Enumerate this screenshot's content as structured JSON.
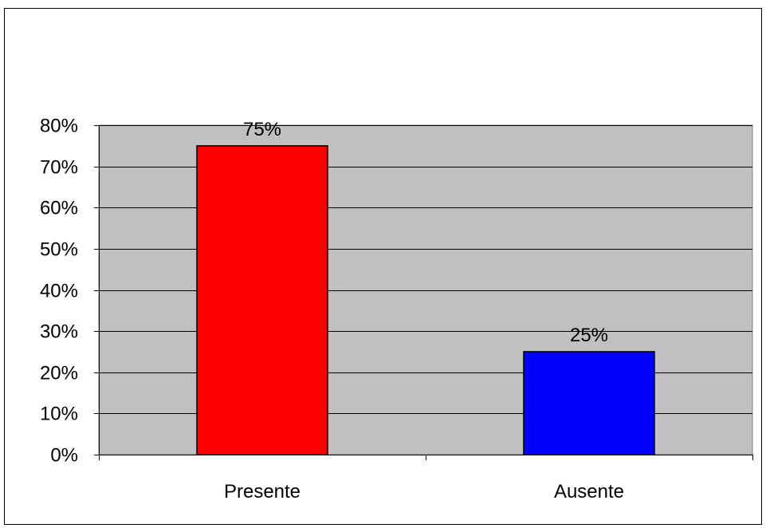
{
  "chart_data": {
    "type": "bar",
    "categories": [
      "Presente",
      "Ausente"
    ],
    "values": [
      75,
      25
    ],
    "data_labels": [
      "75%",
      "25%"
    ],
    "colors": [
      "#ff0000",
      "#0000ff"
    ],
    "ylim": [
      0,
      80
    ],
    "yticks": [
      0,
      10,
      20,
      30,
      40,
      50,
      60,
      70,
      80
    ],
    "ytick_labels": [
      "0%",
      "10%",
      "20%",
      "30%",
      "40%",
      "50%",
      "60%",
      "70%",
      "80%"
    ],
    "title": "",
    "xlabel": "",
    "ylabel": "",
    "grid": true,
    "plot_background": "#c0c0c0",
    "legend": "none"
  }
}
